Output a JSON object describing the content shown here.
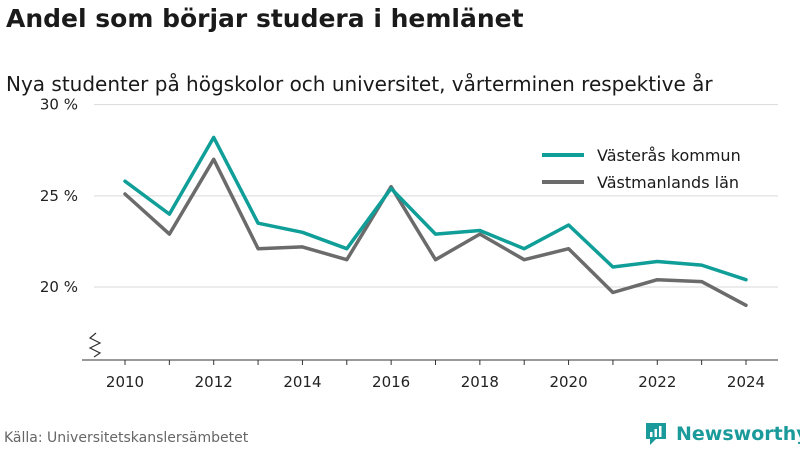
{
  "title": "Andel som börjar studera i hemlänet",
  "subtitle": "Nya studenter på högskolor och universitet, vårterminen respektive år",
  "source": "Källa: Universitetskanslersämbetet",
  "brand": {
    "name": "Newsworthy",
    "icon": "newsworthy-logo-icon",
    "color": "#1a9a9a"
  },
  "chart_data": {
    "type": "line",
    "x": [
      2010,
      2011,
      2012,
      2013,
      2014,
      2015,
      2016,
      2017,
      2018,
      2019,
      2020,
      2021,
      2022,
      2023,
      2024
    ],
    "series": [
      {
        "name": "Västerås kommun",
        "color": "#0f9e98",
        "values": [
          25.8,
          24.0,
          28.2,
          23.5,
          23.0,
          22.1,
          25.4,
          22.9,
          23.1,
          22.1,
          23.4,
          21.1,
          21.4,
          21.2,
          20.4
        ]
      },
      {
        "name": "Västmanlands län",
        "color": "#6b6b6b",
        "values": [
          25.1,
          22.9,
          27.0,
          22.1,
          22.2,
          21.5,
          25.5,
          21.5,
          22.9,
          21.5,
          22.1,
          19.7,
          20.4,
          20.3,
          19.0
        ]
      }
    ],
    "yticks": [
      20,
      25,
      30
    ],
    "ytick_labels": [
      "20 %",
      "25 %",
      "30 %"
    ],
    "xticks": [
      2010,
      2012,
      2014,
      2016,
      2018,
      2020,
      2022,
      2024
    ],
    "ylim": [
      16,
      30
    ],
    "xlim": [
      2009.6,
      2024.4
    ],
    "grid": true,
    "axis_break": true,
    "legend_position": "top-right"
  }
}
